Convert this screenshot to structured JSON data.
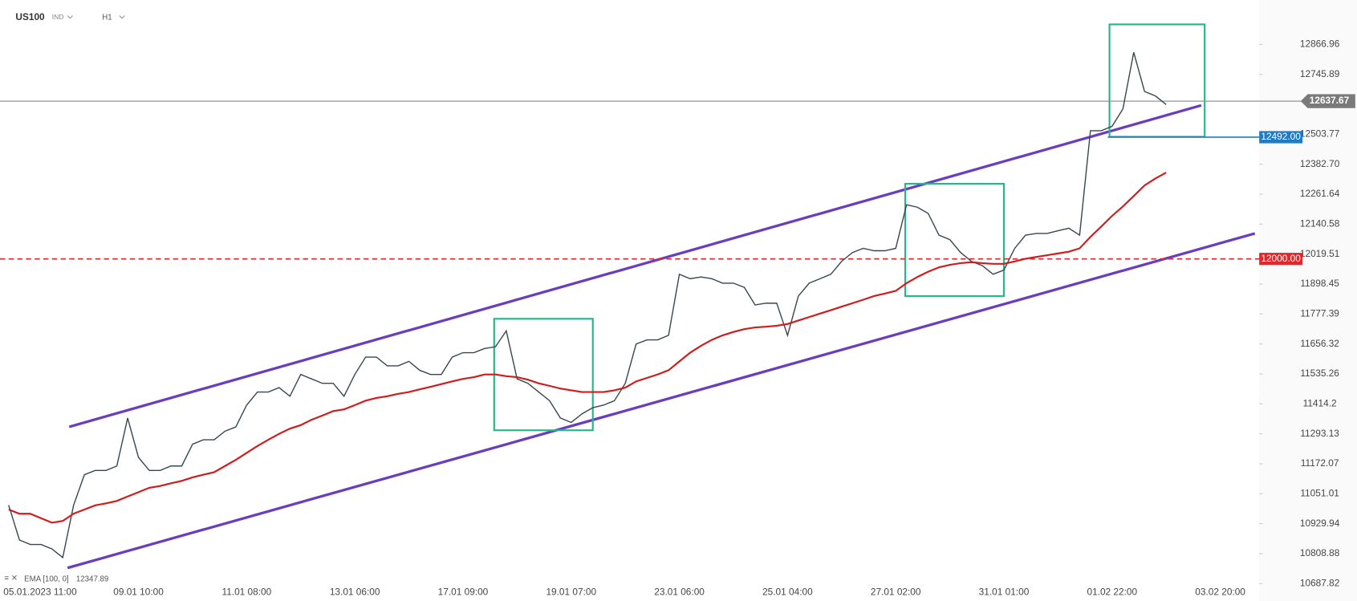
{
  "chart_data": {
    "type": "line",
    "symbol": "US100",
    "symbol_type": "IND",
    "interval": "H1",
    "categories": [
      null,
      null,
      "05.01.2023 11:00",
      null,
      null,
      null,
      null,
      null,
      null,
      null,
      null,
      null,
      "09.01 10:00",
      null,
      null,
      null,
      null,
      null,
      null,
      null,
      null,
      null,
      "11.01 08:00",
      null,
      null,
      null,
      null,
      null,
      null,
      null,
      null,
      null,
      "13.01 06:00",
      null,
      null,
      null,
      null,
      null,
      null,
      null,
      null,
      null,
      "17.01 09:00",
      null,
      null,
      null,
      null,
      null,
      null,
      null,
      null,
      null,
      "19.01 07:00",
      null,
      null,
      null,
      null,
      null,
      null,
      null,
      null,
      null,
      "23.01 06:00",
      null,
      null,
      null,
      null,
      null,
      null,
      null,
      null,
      null,
      "25.01 04:00",
      null,
      null,
      null,
      null,
      null,
      null,
      null,
      null,
      null,
      "27.01 02:00",
      null,
      null,
      null,
      null,
      null,
      null,
      null,
      null,
      null,
      "31.01 01:00",
      null,
      null,
      null,
      null,
      null,
      null,
      null,
      null,
      null,
      "01.02 22:00",
      null,
      null,
      null,
      null,
      null,
      null,
      null,
      null,
      null,
      "03.02 20:00"
    ],
    "series": [
      {
        "color": "#37474f",
        "values": [
          11005,
          10864,
          10846,
          10846,
          10828,
          10793,
          11004,
          11128,
          11145,
          11145,
          11163,
          11357,
          11198,
          11145,
          11145,
          11163,
          11163,
          11251,
          11269,
          11269,
          11304,
          11321,
          11409,
          11462,
          11462,
          11480,
          11445,
          11533,
          11515,
          11497,
          11497,
          11445,
          11533,
          11603,
          11603,
          11568,
          11568,
          11586,
          11550,
          11533,
          11533,
          11603,
          11621,
          11621,
          11638,
          11645,
          11709,
          11515,
          11497,
          11462,
          11427,
          11357,
          11339,
          11374,
          11399,
          11409,
          11427,
          11497,
          11656,
          11673,
          11673,
          11691,
          11938,
          11920,
          11927,
          11920,
          11902,
          11902,
          11885,
          11814,
          11821,
          11821,
          11691,
          11850,
          11902,
          11920,
          11938,
          11990,
          12026,
          12043,
          12033,
          12033,
          12043,
          12219,
          12209,
          12184,
          12096,
          12078,
          12026,
          11990,
          11973,
          11938,
          11955,
          12043,
          12096,
          12103,
          12103,
          12114,
          12124,
          12096,
          12518,
          12518,
          12536,
          12606,
          12835,
          12677,
          12659,
          12624,
          null,
          null,
          null,
          null,
          null
        ]
      },
      {
        "name": "EMA [100, 0]",
        "last_value": 12347.89,
        "color": "#d01c1c",
        "values": [
          10987,
          10970,
          10970,
          10952,
          10934,
          10941,
          10970,
          10987,
          11004,
          11012,
          11022,
          11040,
          11057,
          11075,
          11082,
          11093,
          11103,
          11117,
          11128,
          11138,
          11163,
          11188,
          11216,
          11244,
          11269,
          11293,
          11314,
          11328,
          11350,
          11367,
          11385,
          11392,
          11409,
          11427,
          11438,
          11445,
          11455,
          11462,
          11473,
          11483,
          11494,
          11505,
          11515,
          11522,
          11533,
          11533,
          11526,
          11522,
          11512,
          11497,
          11487,
          11476,
          11469,
          11462,
          11462,
          11462,
          11469,
          11480,
          11505,
          11519,
          11533,
          11550,
          11586,
          11621,
          11649,
          11673,
          11691,
          11705,
          11716,
          11723,
          11726,
          11730,
          11737,
          11751,
          11765,
          11779,
          11793,
          11807,
          11821,
          11835,
          11850,
          11860,
          11871,
          11902,
          11927,
          11948,
          11966,
          11976,
          11983,
          11987,
          11983,
          11980,
          11980,
          11990,
          12001,
          12008,
          12015,
          12022,
          12029,
          12043,
          12089,
          12131,
          12174,
          12212,
          12254,
          12297,
          12325,
          12349,
          null,
          null,
          null,
          null,
          null
        ]
      }
    ],
    "current_price": 12637.67,
    "levels": [
      {
        "value": 12492,
        "label": "12492.00",
        "color": "#1e7bc4",
        "dashed": false
      },
      {
        "value": 12000,
        "label": "12000.00",
        "color": "#e3262b",
        "dashed": true
      }
    ],
    "ylim": [
      10617.4,
      13046.5
    ],
    "yticks": [
      12866.96,
      12745.89,
      12503.77,
      {
        "value": 12382.7,
        "label": "12382.70"
      },
      12261.64,
      12140.58,
      12019.51,
      11898.45,
      11777.39,
      11656.32,
      11535.26,
      11414.2,
      11293.13,
      11172.07,
      11051.01,
      10929.94,
      10808.88,
      10687.82
    ]
  }
}
